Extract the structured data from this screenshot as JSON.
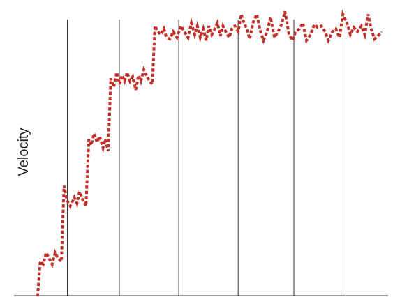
{
  "chart_data": {
    "type": "line",
    "title": "",
    "xlabel": "",
    "ylabel": "Velocity",
    "grid": "vertical",
    "line_style": "dotted",
    "xlim": [
      0,
      100
    ],
    "ylim": [
      0,
      100
    ],
    "vertical_gridlines": [
      14,
      28,
      44,
      60,
      75,
      89
    ],
    "series": [
      {
        "color": "#c0302b",
        "x": [
          6.0,
          6.7,
          7.5,
          8.3,
          9.1,
          9.9,
          10.7,
          11.5,
          12.4,
          13.1,
          13.9,
          14.8,
          15.9,
          16.6,
          17.3,
          18.2,
          19.0,
          19.8,
          20.4,
          21.2,
          22.0,
          22.7,
          23.6,
          24.2,
          25.0,
          25.7,
          26.5,
          27.3,
          28.1,
          28.7,
          29.4,
          30.1,
          30.9,
          31.6,
          32.4,
          33.2,
          33.8,
          34.6,
          35.3,
          36.1,
          36.9,
          37.6,
          38.4,
          39.2,
          40.0,
          40.7,
          41.6,
          42.5,
          43.5,
          44.6,
          45.5,
          46.5,
          47.4,
          48.3,
          49.0,
          49.8,
          50.6,
          51.4,
          52.1,
          52.9,
          53.7,
          54.4,
          55.2,
          55.9,
          56.7,
          57.6,
          58.3,
          59.1,
          60.0,
          60.8,
          61.6,
          62.3,
          63.1,
          64.1,
          65.0,
          65.9,
          66.8,
          67.8,
          68.7,
          69.8,
          70.7,
          71.7,
          72.6,
          73.7,
          74.6,
          75.5,
          76.5,
          77.4,
          78.4,
          79.5,
          80.5,
          81.4,
          82.4,
          83.4,
          84.3,
          85.4,
          86.3,
          87.3,
          88.2,
          89.3,
          90.2,
          91.1,
          92.1,
          93.2,
          94.1,
          95.0,
          95.8,
          96.7,
          97.6,
          98.6
        ],
        "y": [
          0.0,
          12.0,
          11.0,
          15.0,
          13.0,
          11.0,
          15.0,
          13.0,
          12.0,
          38.0,
          33.0,
          31.0,
          34.0,
          32.0,
          36.0,
          33.0,
          31.0,
          54.0,
          52.0,
          56.0,
          53.0,
          55.0,
          51.0,
          54.0,
          50.0,
          75.0,
          72.0,
          77.0,
          73.0,
          76.0,
          74.0,
          77.0,
          74.0,
          75.5,
          71.0,
          76.0,
          74.0,
          78.0,
          76.0,
          74.0,
          73.0,
          93.0,
          91.0,
          90.0,
          92.0,
          89.0,
          88.5,
          91.0,
          89.0,
          93.0,
          91.0,
          89.0,
          94.0,
          90.0,
          93.0,
          89.0,
          92.0,
          88.0,
          93.0,
          90.0,
          92.0,
          94.0,
          89.5,
          93.0,
          91.0,
          89.0,
          92.0,
          93.0,
          91.0,
          97.0,
          94.0,
          92.0,
          88.5,
          94.5,
          97.0,
          91.5,
          88.0,
          91.0,
          96.0,
          89.0,
          91.0,
          93.5,
          98.0,
          90.0,
          88.0,
          91.0,
          92.0,
          94.0,
          88.0,
          90.0,
          93.5,
          92.5,
          93.0,
          91.0,
          88.0,
          91.0,
          92.0,
          89.0,
          97.0,
          94.0,
          90.0,
          92.5,
          91.0,
          93.0,
          90.0,
          97.0,
          92.0,
          88.5,
          89.5,
          91.0
        ]
      }
    ]
  }
}
